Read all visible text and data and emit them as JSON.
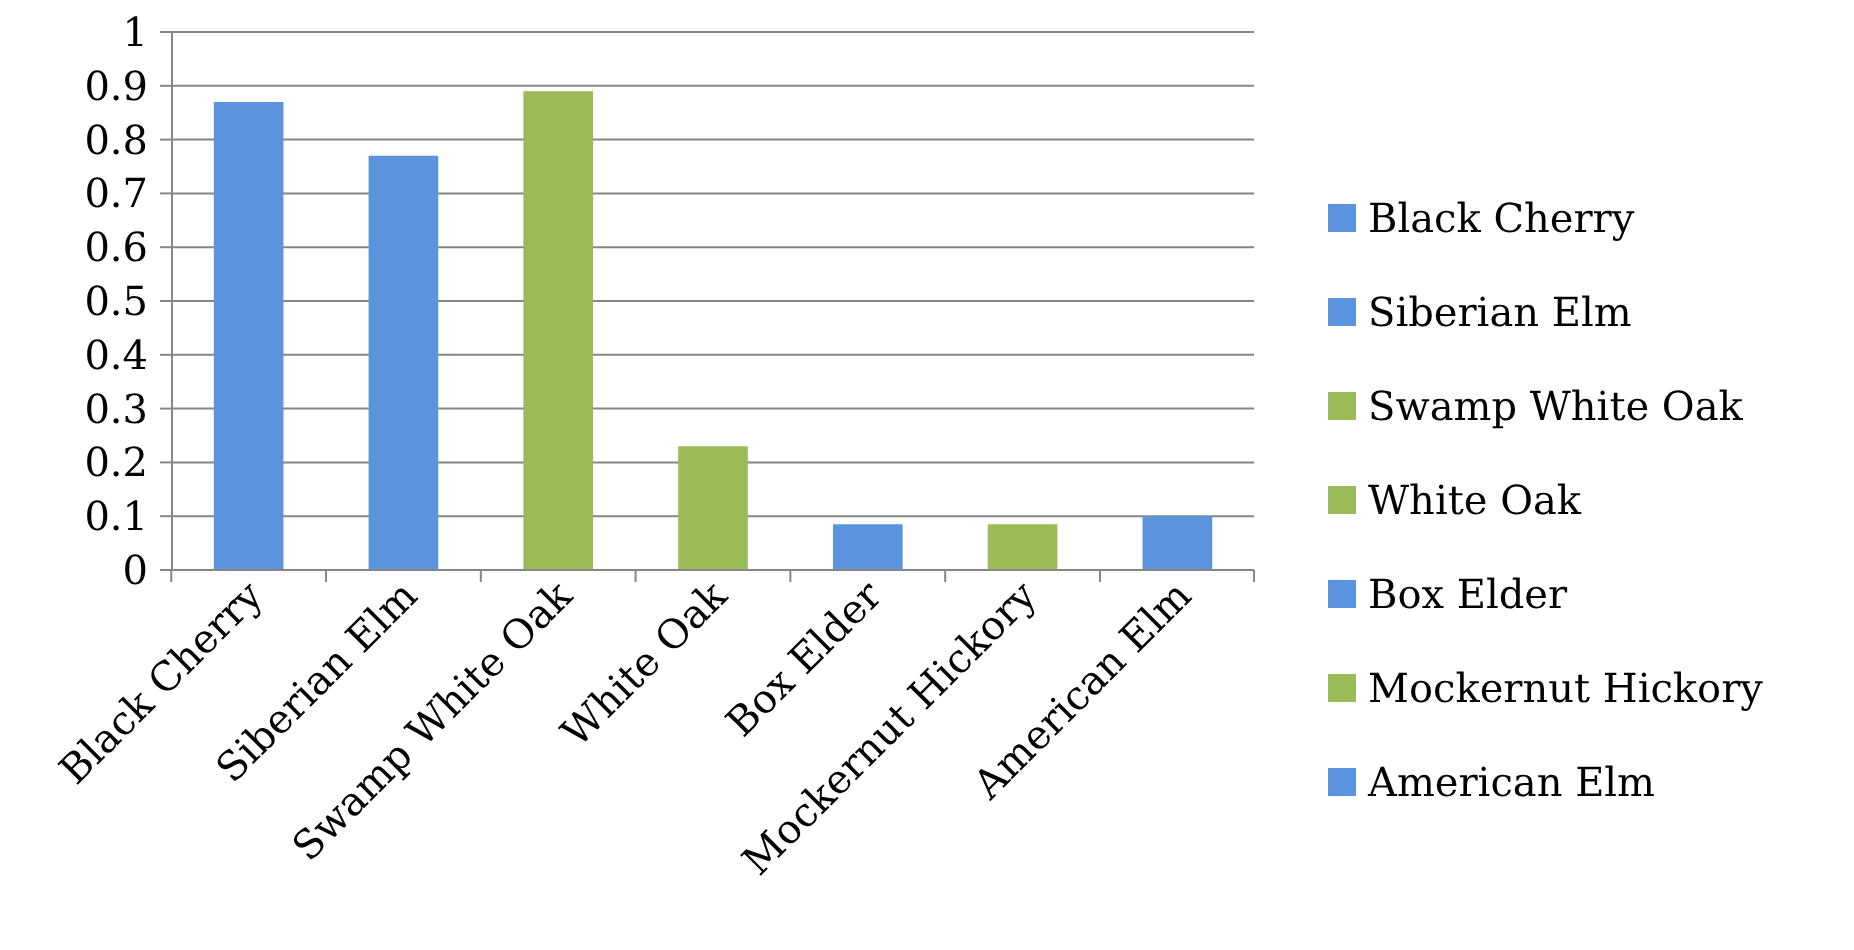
{
  "chart_data": {
    "type": "bar",
    "categories": [
      "Black Cherry",
      "Siberian Elm",
      "Swamp White Oak",
      "White Oak",
      "Box Elder",
      "Mockernut Hickory",
      "American Elm"
    ],
    "stacked": true,
    "series": [
      {
        "name": "Black Cherry",
        "color": "#5b93dc",
        "values": [
          0.87,
          null,
          null,
          null,
          null,
          null,
          null
        ]
      },
      {
        "name": "Siberian Elm",
        "color": "#5b93dc",
        "values": [
          null,
          0.77,
          null,
          null,
          null,
          null,
          null
        ]
      },
      {
        "name": "Swamp White Oak",
        "color": "#9bbb59",
        "values": [
          null,
          null,
          0.89,
          null,
          null,
          null,
          null
        ]
      },
      {
        "name": "White Oak",
        "color": "#9bbb59",
        "values": [
          null,
          null,
          null,
          0.23,
          null,
          null,
          null
        ]
      },
      {
        "name": "Box Elder",
        "color": "#5b93dc",
        "values": [
          null,
          null,
          null,
          null,
          0.085,
          null,
          null
        ]
      },
      {
        "name": "Mockernut Hickory",
        "color": "#9bbb59",
        "values": [
          null,
          null,
          null,
          null,
          null,
          0.085,
          null
        ]
      },
      {
        "name": "American Elm",
        "color": "#5b93dc",
        "values": [
          null,
          null,
          null,
          null,
          null,
          null,
          0.1
        ]
      }
    ],
    "ylim": [
      0,
      1
    ],
    "yticks": [
      0,
      0.1,
      0.2,
      0.3,
      0.4,
      0.5,
      0.6,
      0.7,
      0.8,
      0.9,
      1
    ],
    "grid": "y",
    "legend": "right"
  }
}
